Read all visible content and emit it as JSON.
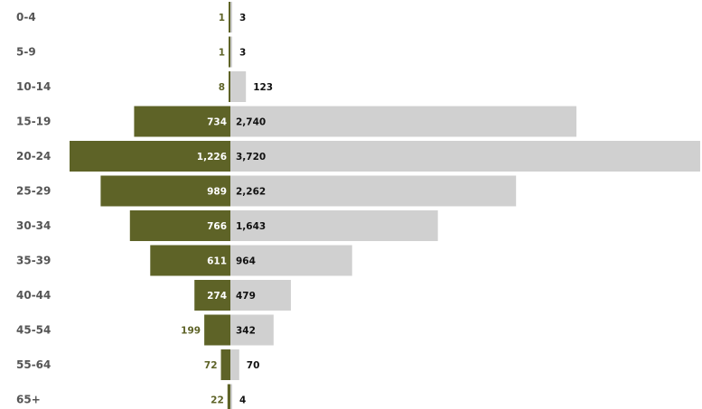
{
  "chart_data": {
    "type": "bar",
    "orientation": "horizontal",
    "layout": "diverging",
    "categories": [
      "0-4",
      "5-9",
      "10-14",
      "15-19",
      "20-24",
      "25-29",
      "30-34",
      "35-39",
      "40-44",
      "45-54",
      "55-64",
      "65+"
    ],
    "series": [
      {
        "side": "left",
        "values": [
          1,
          1,
          8,
          734,
          1226,
          989,
          766,
          611,
          274,
          199,
          72,
          22
        ],
        "value_labels": [
          "1",
          "1",
          "8",
          "734",
          "1,226",
          "989",
          "766",
          "611",
          "274",
          "199",
          "72",
          "22"
        ],
        "color": "#5e6327"
      },
      {
        "side": "right",
        "values": [
          3,
          3,
          123,
          2740,
          3720,
          2262,
          1643,
          964,
          479,
          342,
          70,
          4
        ],
        "value_labels": [
          "3",
          "3",
          "123",
          "2,740",
          "3,720",
          "2,262",
          "1,643",
          "964",
          "479",
          "342",
          "70",
          "4"
        ],
        "color": "#d0d0d0"
      }
    ],
    "title": "",
    "xlabel": "",
    "ylabel": "",
    "grid": false,
    "legend": "none"
  },
  "colors": {
    "category_text": "#555555",
    "inside_label_left": "#ffffff",
    "outside_label_left": "#5e6327",
    "label_right": "#111111"
  }
}
